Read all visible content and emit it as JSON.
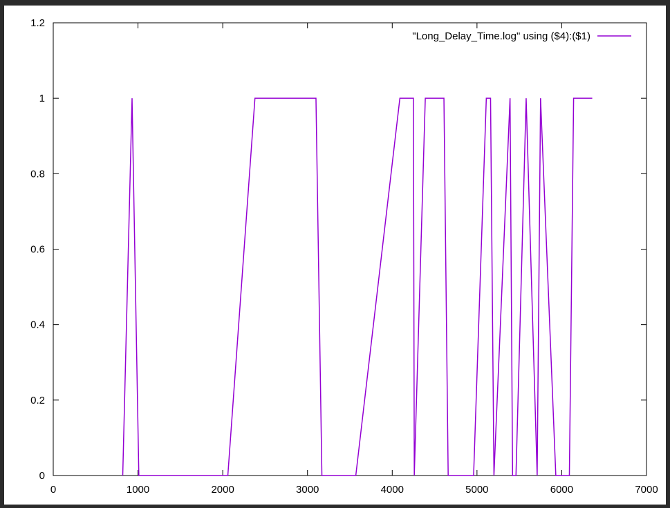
{
  "chart_data": {
    "type": "line",
    "legend": {
      "label": "\"Long_Delay_Time.log\" using ($4):($1)",
      "placement": "top-right",
      "color": "#9400d3"
    },
    "xlim": [
      0,
      7000
    ],
    "ylim": [
      0,
      1.2
    ],
    "xticks": [
      0,
      1000,
      2000,
      3000,
      4000,
      5000,
      6000,
      7000
    ],
    "yticks": [
      0,
      0.2,
      0.4,
      0.6,
      0.8,
      1,
      1.2
    ],
    "xtick_labels": [
      "0",
      "1000",
      "2000",
      "3000",
      "4000",
      "5000",
      "6000",
      "7000"
    ],
    "ytick_labels": [
      "0",
      "0.2",
      "0.4",
      "0.6",
      "0.8",
      "1",
      "1.2"
    ],
    "grid": false,
    "series": [
      {
        "name": "\"Long_Delay_Time.log\" using ($4):($1)",
        "color": "#9400d3",
        "x": [
          820,
          930,
          1010,
          2060,
          2380,
          3100,
          3170,
          3570,
          4090,
          4250,
          4260,
          4390,
          4610,
          4660,
          4960,
          5110,
          5160,
          5200,
          5390,
          5420,
          5460,
          5580,
          5710,
          5750,
          5930,
          6090,
          6140,
          6360
        ],
        "y": [
          0,
          1,
          0,
          0,
          1,
          1,
          0,
          0,
          1,
          1,
          0,
          1,
          1,
          0,
          0,
          1,
          1,
          0,
          1,
          0,
          0,
          1,
          0,
          1,
          0,
          0,
          1,
          1
        ]
      }
    ]
  }
}
